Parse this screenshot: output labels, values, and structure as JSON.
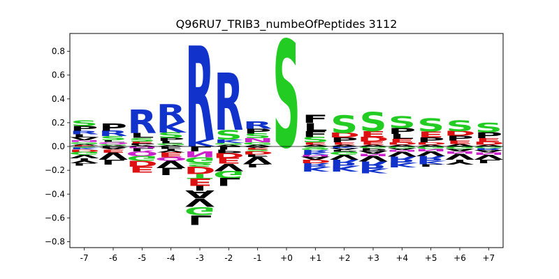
{
  "chart_data": {
    "type": "sequence-logo",
    "title": "Q96RU7_TRIB3_numbeOfPeptides 3112",
    "xlabel": "",
    "ylabel": "",
    "ylim": [
      -0.85,
      0.95
    ],
    "yticks": [
      -0.8,
      -0.6,
      -0.4,
      -0.2,
      0.0,
      0.2,
      0.4,
      0.6,
      0.8
    ],
    "ytick_labels": [
      "−0.8",
      "−0.6",
      "−0.4",
      "−0.2",
      "0.0",
      "0.2",
      "0.4",
      "0.6",
      "0.8"
    ],
    "grid": false,
    "legend": "none",
    "colors": {
      "polar_green": "#22cc22",
      "basic_blue": "#1133cc",
      "acidic_red": "#dd1111",
      "hydrophobic_black": "#000000",
      "amide_magenta": "#cc22cc",
      "zero_line": "#000000"
    },
    "positions": [
      {
        "label": "-7",
        "pos": [
          [
            "E",
            0.01,
            "red"
          ],
          [
            "A",
            0.012,
            "black"
          ],
          [
            "G",
            0.015,
            "green"
          ],
          [
            "N",
            0.015,
            "magenta"
          ],
          [
            "V",
            0.025,
            "black"
          ],
          [
            "L",
            0.025,
            "black"
          ],
          [
            "R",
            0.03,
            "blue"
          ],
          [
            "P",
            0.04,
            "black"
          ],
          [
            "S",
            0.045,
            "green"
          ]
        ],
        "neg": [
          [
            "S",
            0.01,
            "green"
          ],
          [
            "K",
            0.015,
            "blue"
          ],
          [
            "D",
            0.02,
            "red"
          ],
          [
            "G",
            0.025,
            "green"
          ],
          [
            "V",
            0.03,
            "black"
          ],
          [
            "Y",
            0.04,
            "black"
          ],
          [
            "L",
            0.02,
            "black"
          ]
        ]
      },
      {
        "label": "-6",
        "pos": [
          [
            "A",
            0.01,
            "black"
          ],
          [
            "G",
            0.012,
            "green"
          ],
          [
            "Q",
            0.015,
            "magenta"
          ],
          [
            "L",
            0.015,
            "black"
          ],
          [
            "S",
            0.035,
            "green"
          ],
          [
            "R",
            0.045,
            "blue"
          ],
          [
            "P",
            0.06,
            "black"
          ]
        ],
        "neg": [
          [
            "P",
            0.01,
            "black"
          ],
          [
            "A",
            0.015,
            "black"
          ],
          [
            "E",
            0.025,
            "red"
          ],
          [
            "V",
            0.06,
            "black"
          ],
          [
            "L",
            0.04,
            "black"
          ]
        ]
      },
      {
        "label": "-5",
        "pos": [
          [
            "A",
            0.012,
            "black"
          ],
          [
            "P",
            0.015,
            "black"
          ],
          [
            "E",
            0.015,
            "red"
          ],
          [
            "S",
            0.03,
            "green"
          ],
          [
            "L",
            0.04,
            "black"
          ],
          [
            "R",
            0.2,
            "blue"
          ]
        ],
        "neg": [
          [
            "N",
            0.015,
            "magenta"
          ],
          [
            "L",
            0.025,
            "black"
          ],
          [
            "Q",
            0.04,
            "magenta"
          ],
          [
            "G",
            0.04,
            "green"
          ],
          [
            "D",
            0.05,
            "red"
          ],
          [
            "E",
            0.05,
            "red"
          ]
        ]
      },
      {
        "label": "-4",
        "pos": [
          [
            "A",
            0.012,
            "black"
          ],
          [
            "G",
            0.015,
            "green"
          ],
          [
            "L",
            0.02,
            "black"
          ],
          [
            "P",
            0.025,
            "black"
          ],
          [
            "S",
            0.045,
            "green"
          ],
          [
            "K",
            0.09,
            "blue"
          ],
          [
            "R",
            0.15,
            "blue"
          ]
        ],
        "neg": [
          [
            "F",
            0.02,
            "black"
          ],
          [
            "Y",
            0.03,
            "black"
          ],
          [
            "E",
            0.04,
            "red"
          ],
          [
            "Q",
            0.03,
            "magenta"
          ],
          [
            "V",
            0.06,
            "black"
          ],
          [
            "L",
            0.06,
            "black"
          ]
        ]
      },
      {
        "label": "-3",
        "pos": [
          [
            "K",
            0.06,
            "blue"
          ],
          [
            "R",
            0.79,
            "blue"
          ]
        ],
        "neg": [
          [
            "L",
            0.04,
            "black"
          ],
          [
            "N",
            0.05,
            "magenta"
          ],
          [
            "G",
            0.05,
            "green"
          ],
          [
            "S",
            0.03,
            "green"
          ],
          [
            "D",
            0.06,
            "red"
          ],
          [
            "T",
            0.04,
            "green"
          ],
          [
            "E",
            0.06,
            "red"
          ],
          [
            "I",
            0.04,
            "black"
          ],
          [
            "A",
            0.07,
            "black"
          ],
          [
            "V",
            0.07,
            "black"
          ],
          [
            "G",
            0.07,
            "green"
          ],
          [
            "L",
            0.08,
            "black"
          ]
        ]
      },
      {
        "label": "-2",
        "pos": [
          [
            "A",
            0.015,
            "black"
          ],
          [
            "G",
            0.015,
            "green"
          ],
          [
            "K",
            0.03,
            "blue"
          ],
          [
            "S",
            0.08,
            "green"
          ],
          [
            "R",
            0.48,
            "blue"
          ]
        ],
        "neg": [
          [
            "L",
            0.025,
            "black"
          ],
          [
            "P",
            0.03,
            "black"
          ],
          [
            "D",
            0.04,
            "red"
          ],
          [
            "E",
            0.05,
            "red"
          ],
          [
            "V",
            0.06,
            "black"
          ],
          [
            "G",
            0.06,
            "green"
          ],
          [
            "L",
            0.07,
            "black"
          ]
        ]
      },
      {
        "label": "-1",
        "pos": [
          [
            "A",
            0.015,
            "black"
          ],
          [
            "G",
            0.02,
            "green"
          ],
          [
            "N",
            0.035,
            "magenta"
          ],
          [
            "S",
            0.04,
            "green"
          ],
          [
            "P",
            0.04,
            "black"
          ],
          [
            "R",
            0.06,
            "blue"
          ]
        ],
        "neg": [
          [
            "A",
            0.012,
            "black"
          ],
          [
            "E",
            0.015,
            "red"
          ],
          [
            "S",
            0.015,
            "green"
          ],
          [
            "D",
            0.025,
            "red"
          ],
          [
            "F",
            0.02,
            "black"
          ],
          [
            "V",
            0.06,
            "black"
          ],
          [
            "L",
            0.03,
            "black"
          ]
        ]
      },
      {
        "label": "+0",
        "pos": [
          [
            "S",
            0.9,
            "green"
          ]
        ],
        "neg": []
      },
      {
        "label": "+1",
        "pos": [
          [
            "A",
            0.015,
            "black"
          ],
          [
            "E",
            0.02,
            "red"
          ],
          [
            "S",
            0.045,
            "green"
          ],
          [
            "F",
            0.05,
            "black"
          ],
          [
            "L",
            0.07,
            "black"
          ],
          [
            "F",
            0.07,
            "black"
          ]
        ],
        "neg": [
          [
            "S",
            0.015,
            "green"
          ],
          [
            "G",
            0.015,
            "green"
          ],
          [
            "R",
            0.02,
            "blue"
          ],
          [
            "K",
            0.02,
            "blue"
          ],
          [
            "N",
            0.015,
            "magenta"
          ],
          [
            "A",
            0.025,
            "black"
          ],
          [
            "D",
            0.03,
            "red"
          ],
          [
            "R",
            0.03,
            "blue"
          ],
          [
            "K",
            0.04,
            "blue"
          ]
        ]
      },
      {
        "label": "+2",
        "pos": [
          [
            "A",
            0.015,
            "black"
          ],
          [
            "E",
            0.02,
            "red"
          ],
          [
            "P",
            0.04,
            "black"
          ],
          [
            "D",
            0.04,
            "red"
          ],
          [
            "S",
            0.15,
            "green"
          ]
        ],
        "neg": [
          [
            "K",
            0.015,
            "blue"
          ],
          [
            "A",
            0.015,
            "black"
          ],
          [
            "P",
            0.015,
            "black"
          ],
          [
            "G",
            0.025,
            "green"
          ],
          [
            "V",
            0.04,
            "black"
          ],
          [
            "R",
            0.05,
            "blue"
          ],
          [
            "K",
            0.05,
            "blue"
          ]
        ]
      },
      {
        "label": "+3",
        "pos": [
          [
            "A",
            0.015,
            "black"
          ],
          [
            "E",
            0.025,
            "red"
          ],
          [
            "D",
            0.04,
            "red"
          ],
          [
            "E",
            0.05,
            "red"
          ],
          [
            "S",
            0.16,
            "green"
          ]
        ],
        "neg": [
          [
            "G",
            0.015,
            "green"
          ],
          [
            "P",
            0.02,
            "black"
          ],
          [
            "A",
            0.025,
            "black"
          ],
          [
            "N",
            0.02,
            "magenta"
          ],
          [
            "V",
            0.045,
            "black"
          ],
          [
            "R",
            0.06,
            "blue"
          ],
          [
            "K",
            0.04,
            "blue"
          ]
        ]
      },
      {
        "label": "+4",
        "pos": [
          [
            "A",
            0.015,
            "black"
          ],
          [
            "D",
            0.02,
            "red"
          ],
          [
            "E",
            0.03,
            "red"
          ],
          [
            "L",
            0.04,
            "black"
          ],
          [
            "P",
            0.05,
            "black"
          ],
          [
            "S",
            0.1,
            "green"
          ]
        ],
        "neg": [
          [
            "G",
            0.015,
            "green"
          ],
          [
            "A",
            0.015,
            "black"
          ],
          [
            "N",
            0.015,
            "magenta"
          ],
          [
            "V",
            0.04,
            "black"
          ],
          [
            "R",
            0.05,
            "blue"
          ],
          [
            "K",
            0.04,
            "blue"
          ]
        ]
      },
      {
        "label": "+5",
        "pos": [
          [
            "A",
            0.015,
            "black"
          ],
          [
            "D",
            0.02,
            "red"
          ],
          [
            "P",
            0.04,
            "black"
          ],
          [
            "E",
            0.05,
            "red"
          ],
          [
            "S",
            0.11,
            "green"
          ]
        ],
        "neg": [
          [
            "G",
            0.02,
            "green"
          ],
          [
            "N",
            0.02,
            "magenta"
          ],
          [
            "V",
            0.04,
            "black"
          ],
          [
            "R",
            0.04,
            "blue"
          ],
          [
            "K",
            0.03,
            "blue"
          ],
          [
            "L",
            0.02,
            "black"
          ]
        ]
      },
      {
        "label": "+6",
        "pos": [
          [
            "A",
            0.02,
            "black"
          ],
          [
            "E",
            0.03,
            "red"
          ],
          [
            "P",
            0.04,
            "black"
          ],
          [
            "D",
            0.04,
            "red"
          ],
          [
            "S",
            0.09,
            "green"
          ]
        ],
        "neg": [
          [
            "G",
            0.02,
            "green"
          ],
          [
            "A",
            0.02,
            "black"
          ],
          [
            "N",
            0.02,
            "magenta"
          ],
          [
            "V",
            0.05,
            "black"
          ],
          [
            "Y",
            0.04,
            "black"
          ]
        ]
      },
      {
        "label": "+7",
        "pos": [
          [
            "A",
            0.015,
            "black"
          ],
          [
            "D",
            0.025,
            "red"
          ],
          [
            "E",
            0.03,
            "red"
          ],
          [
            "P",
            0.05,
            "black"
          ],
          [
            "S",
            0.08,
            "green"
          ]
        ],
        "neg": [
          [
            "G",
            0.015,
            "green"
          ],
          [
            "R",
            0.015,
            "blue"
          ],
          [
            "A",
            0.02,
            "black"
          ],
          [
            "N",
            0.02,
            "magenta"
          ],
          [
            "V",
            0.04,
            "black"
          ],
          [
            "L",
            0.03,
            "black"
          ]
        ]
      }
    ]
  }
}
